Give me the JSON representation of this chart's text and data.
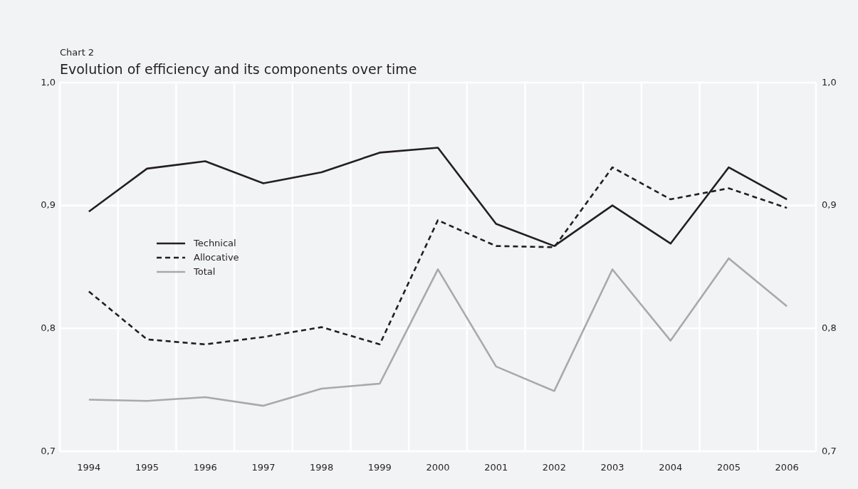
{
  "chart_data": {
    "type": "line",
    "subtitle": "Chart  2",
    "title": "Evolution of efficiency and its components over time",
    "categories": [
      "1994",
      "1995",
      "1996",
      "1997",
      "1998",
      "1999",
      "2000",
      "2001",
      "2002",
      "2003",
      "2004",
      "2005",
      "2006"
    ],
    "series": [
      {
        "name": "Technical",
        "color": "#231f20",
        "line_style": "solid",
        "values": [
          0.895,
          0.93,
          0.936,
          0.918,
          0.927,
          0.943,
          0.947,
          0.885,
          0.867,
          0.9,
          0.869,
          0.931,
          0.905
        ]
      },
      {
        "name": "Allocative",
        "color": "#231f20",
        "line_style": "dashed",
        "values": [
          0.83,
          0.791,
          0.787,
          0.793,
          0.801,
          0.787,
          0.888,
          0.867,
          0.866,
          0.931,
          0.905,
          0.914,
          0.898
        ]
      },
      {
        "name": "Total",
        "color": "#a7a9ac",
        "line_style": "solid",
        "values": [
          0.742,
          0.741,
          0.744,
          0.737,
          0.751,
          0.755,
          0.848,
          0.769,
          0.749,
          0.848,
          0.79,
          0.857,
          0.818
        ]
      }
    ],
    "ylim": [
      0.7,
      1.0
    ],
    "yticks": [
      {
        "value": 0.7,
        "label": "0,7"
      },
      {
        "value": 0.8,
        "label": "0,8"
      },
      {
        "value": 0.9,
        "label": "0,9"
      },
      {
        "value": 1.0,
        "label": "1,0"
      }
    ],
    "y2lim": [
      0.7,
      1.0
    ],
    "y2ticks": [
      {
        "value": 0.7,
        "label": "0,7"
      },
      {
        "value": 0.8,
        "label": "0,8"
      },
      {
        "value": 0.9,
        "label": "0,9"
      },
      {
        "value": 1.0,
        "label": "1,0"
      }
    ],
    "grid": true,
    "legend": "left",
    "marker": "none"
  }
}
